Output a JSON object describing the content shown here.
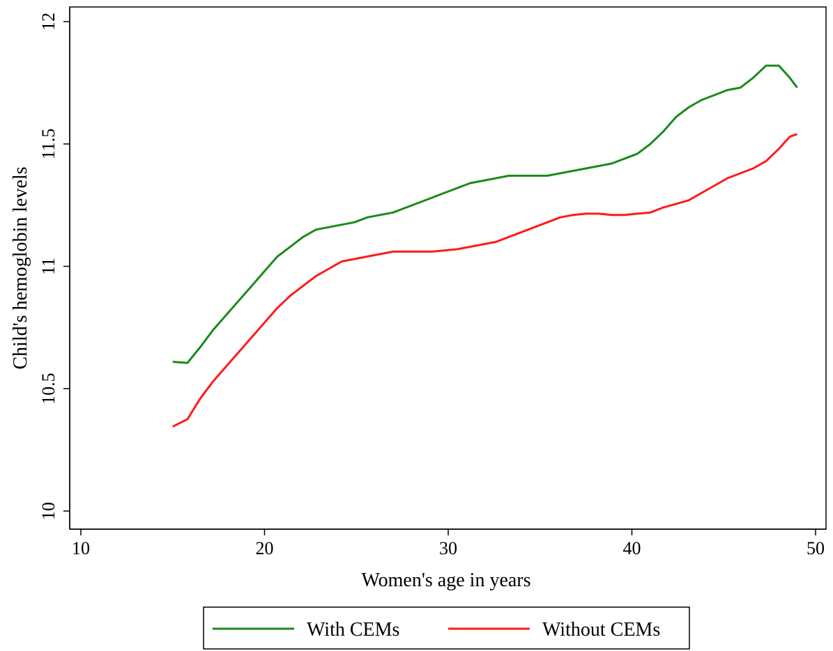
{
  "chart_data": {
    "type": "line",
    "title": "",
    "xlabel": "Women's age in years",
    "ylabel": "Child's hemoglobin levels",
    "xlim": [
      10,
      50
    ],
    "ylim": [
      10,
      12
    ],
    "xticks": [
      10,
      20,
      30,
      40,
      50
    ],
    "yticks": [
      10,
      10.5,
      11,
      11.5,
      12
    ],
    "ytick_labels": [
      "10",
      "10.5",
      "11",
      "11.5",
      "12"
    ],
    "grid": false,
    "legend_position": "bottom-center",
    "series": [
      {
        "name": "With CEMs",
        "color": "#1a8a1a",
        "x": [
          15,
          15.8,
          16.5,
          17.2,
          17.9,
          18.6,
          19.3,
          20,
          20.7,
          21.4,
          22.1,
          22.8,
          23.5,
          24.2,
          24.9,
          25.6,
          26.3,
          27,
          27.7,
          28.4,
          29.1,
          29.8,
          30.5,
          31.2,
          31.9,
          32.6,
          33.3,
          34,
          34.7,
          35.4,
          36.1,
          36.8,
          37.5,
          38.2,
          38.9,
          39.6,
          40.3,
          41,
          41.7,
          42.4,
          43.1,
          43.8,
          44.5,
          45.2,
          45.9,
          46.6,
          47.3,
          48,
          48.6,
          49
        ],
        "y": [
          10.61,
          10.605,
          10.67,
          10.74,
          10.8,
          10.86,
          10.92,
          10.98,
          11.04,
          11.08,
          11.12,
          11.15,
          11.16,
          11.17,
          11.18,
          11.2,
          11.21,
          11.22,
          11.24,
          11.26,
          11.28,
          11.3,
          11.32,
          11.34,
          11.35,
          11.36,
          11.37,
          11.37,
          11.37,
          11.37,
          11.38,
          11.39,
          11.4,
          11.41,
          11.42,
          11.44,
          11.46,
          11.5,
          11.55,
          11.61,
          11.65,
          11.68,
          11.7,
          11.72,
          11.73,
          11.77,
          11.82,
          11.82,
          11.77,
          11.73
        ]
      },
      {
        "name": "Without CEMs",
        "color": "#ff1a1a",
        "x": [
          15,
          15.8,
          16.5,
          17.2,
          17.9,
          18.6,
          19.3,
          20,
          20.7,
          21.4,
          22.1,
          22.8,
          23.5,
          24.2,
          24.9,
          25.6,
          26.3,
          27,
          27.7,
          28.4,
          29.1,
          29.8,
          30.5,
          31.2,
          31.9,
          32.6,
          33.3,
          34,
          34.7,
          35.4,
          36.1,
          36.8,
          37.5,
          38.2,
          38.9,
          39.6,
          40.3,
          41,
          41.7,
          42.4,
          43.1,
          43.8,
          44.5,
          45.2,
          45.9,
          46.6,
          47.3,
          48,
          48.6,
          49
        ],
        "y": [
          10.345,
          10.375,
          10.46,
          10.53,
          10.59,
          10.65,
          10.71,
          10.77,
          10.83,
          10.88,
          10.92,
          10.96,
          10.99,
          11.02,
          11.03,
          11.04,
          11.05,
          11.06,
          11.06,
          11.06,
          11.06,
          11.065,
          11.07,
          11.08,
          11.09,
          11.1,
          11.12,
          11.14,
          11.16,
          11.18,
          11.2,
          11.21,
          11.215,
          11.215,
          11.21,
          11.21,
          11.215,
          11.22,
          11.24,
          11.255,
          11.27,
          11.3,
          11.33,
          11.36,
          11.38,
          11.4,
          11.43,
          11.48,
          11.53,
          11.54
        ]
      }
    ]
  }
}
